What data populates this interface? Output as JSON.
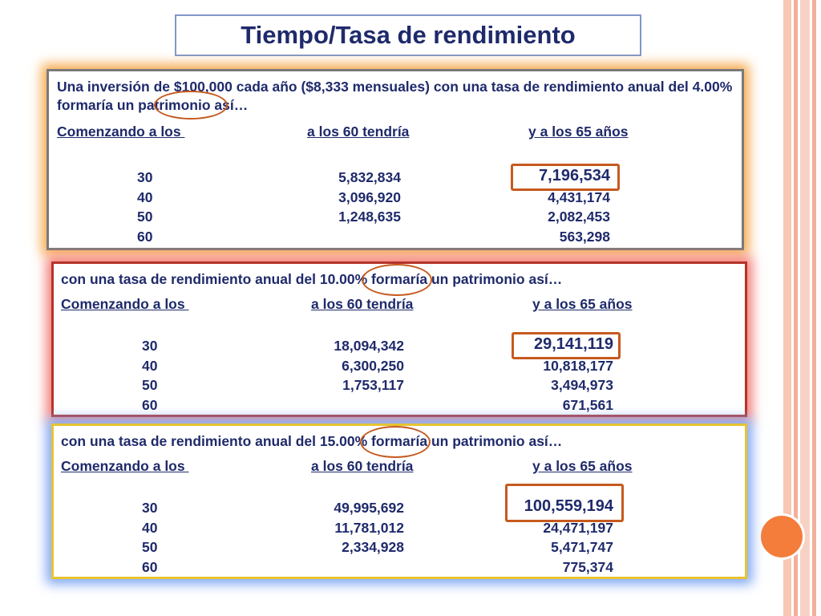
{
  "title": "Tiempo/Tasa de rendimiento",
  "colors": {
    "text": "#1f2a6b",
    "accent_orange": "#c65a1f",
    "glow_orange": "#f6a84a",
    "glow_red": "#f47a74",
    "glow_blue": "#7da5f2",
    "deco_circle": "#f47d3b"
  },
  "columns": {
    "start": "Comenzando a los ",
    "at60": "a los 60 tendría",
    "at65": "y a los 65 años"
  },
  "panels": [
    {
      "intro": "Una inversión de $100,000 cada año ($8,333 mensuales) con una tasa de rendimiento anual del 4.00% formaría un patrimonio así…",
      "rate": "4.00%",
      "rows": [
        {
          "age": "30",
          "at60": "5,832,834",
          "at65": "7,196,534"
        },
        {
          "age": "40",
          "at60": "3,096,920",
          "at65": "4,431,174"
        },
        {
          "age": "50",
          "at60": "1,248,635",
          "at65": "2,082,453"
        },
        {
          "age": "60",
          "at60": "",
          "at65": "563,298"
        }
      ]
    },
    {
      "intro": "con una tasa de rendimiento anual del 10.00% formaría un patrimonio así…",
      "rate": "10.00%",
      "rows": [
        {
          "age": "30",
          "at60": "18,094,342",
          "at65": "29,141,119"
        },
        {
          "age": "40",
          "at60": "6,300,250",
          "at65": "10,818,177"
        },
        {
          "age": "50",
          "at60": "1,753,117",
          "at65": "3,494,973"
        },
        {
          "age": "60",
          "at60": "",
          "at65": "671,561"
        }
      ]
    },
    {
      "intro": "con una tasa de rendimiento anual del 15.00% formaría un patrimonio así…",
      "rate": "15.00%",
      "rows": [
        {
          "age": "30",
          "at60": "49,995,692",
          "at65": "100,559,194"
        },
        {
          "age": "40",
          "at60": "11,781,012",
          "at65": "24,471,197"
        },
        {
          "age": "50",
          "at60": "2,334,928",
          "at65": "5,471,747"
        },
        {
          "age": "60",
          "at60": "",
          "at65": "775,374"
        }
      ]
    }
  ]
}
